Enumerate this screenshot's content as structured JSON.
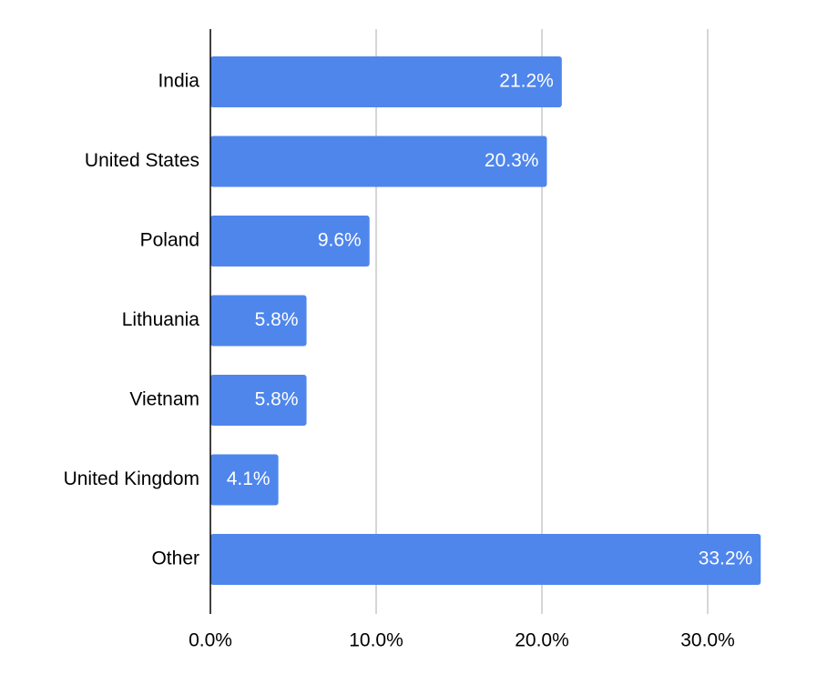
{
  "chart_data": {
    "type": "bar",
    "orientation": "horizontal",
    "categories": [
      "India",
      "United States",
      "Poland",
      "Lithuania",
      "Vietnam",
      "United Kingdom",
      "Other"
    ],
    "values": [
      21.2,
      20.3,
      9.6,
      5.8,
      5.8,
      4.1,
      33.2
    ],
    "data_labels": [
      "21.2%",
      "20.3%",
      "9.6%",
      "5.8%",
      "5.8%",
      "4.1%",
      "33.2%"
    ],
    "x_ticks": [
      0,
      10,
      20,
      30
    ],
    "x_tick_labels": [
      "0.0%",
      "10.0%",
      "20.0%",
      "30.0%"
    ],
    "xlim": [
      0,
      35
    ],
    "grid": "vertical",
    "legend": "none",
    "bar_color": "#4F86EC",
    "gridline_color": "#C8C8C8",
    "axis_color": "#000000",
    "title": "",
    "xlabel": "",
    "ylabel": ""
  }
}
